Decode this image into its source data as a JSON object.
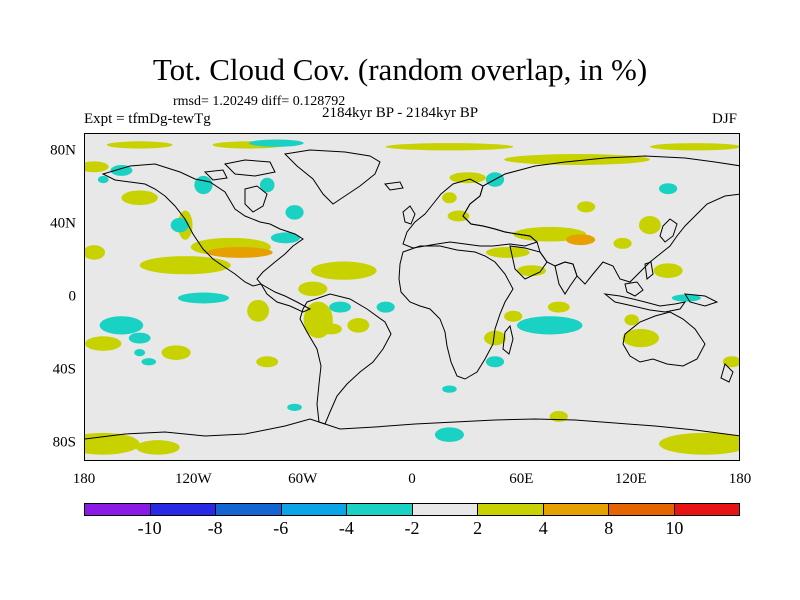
{
  "title": "Tot. Cloud Cov. (random overlap, in %)",
  "stats": "rmsd= 1.20249 diff= 0.128792",
  "experiment": "Expt = tfmDg-tewTg",
  "period": "2184kyr BP - 2184kyr BP",
  "season": "DJF",
  "map": {
    "projection": "cylindrical equidistant",
    "lon_range": [
      -180,
      180
    ],
    "lat_range": [
      -90,
      90
    ],
    "background_color": "#e8e8e8",
    "x_ticks": [
      "180",
      "120W",
      "60W",
      "0",
      "60E",
      "120E",
      "180"
    ],
    "y_ticks": [
      "80N",
      "40N",
      "0",
      "40S",
      "80S"
    ],
    "anomaly_regions": [
      {
        "lon": -175,
        "lat": 72,
        "rx": 8,
        "ry": 3,
        "value": 3
      },
      {
        "lon": -150,
        "lat": 84,
        "rx": 18,
        "ry": 2,
        "value": 3
      },
      {
        "lon": -90,
        "lat": 84,
        "rx": 20,
        "ry": 2,
        "value": 3
      },
      {
        "lon": 20,
        "lat": 83,
        "rx": 35,
        "ry": 2,
        "value": 3
      },
      {
        "lon": 155,
        "lat": 83,
        "rx": 25,
        "ry": 2,
        "value": 3
      },
      {
        "lon": 90,
        "lat": 76,
        "rx": 40,
        "ry": 3,
        "value": 3
      },
      {
        "lon": 30,
        "lat": 66,
        "rx": 10,
        "ry": 3,
        "value": 3
      },
      {
        "lon": -150,
        "lat": 55,
        "rx": 10,
        "ry": 4,
        "value": 3
      },
      {
        "lon": -125,
        "lat": 40,
        "rx": 4,
        "ry": 8,
        "value": 3
      },
      {
        "lon": 95,
        "lat": 50,
        "rx": 5,
        "ry": 3,
        "value": 3
      },
      {
        "lon": -175,
        "lat": 25,
        "rx": 6,
        "ry": 4,
        "value": 3
      },
      {
        "lon": -125,
        "lat": 18,
        "rx": 25,
        "ry": 5,
        "value": 3
      },
      {
        "lon": -100,
        "lat": 28,
        "rx": 22,
        "ry": 5,
        "value": 3
      },
      {
        "lon": -95,
        "lat": 25,
        "rx": 18,
        "ry": 3,
        "value": 6
      },
      {
        "lon": -38,
        "lat": 15,
        "rx": 18,
        "ry": 5,
        "value": 3
      },
      {
        "lon": -55,
        "lat": 5,
        "rx": 8,
        "ry": 4,
        "value": 3
      },
      {
        "lon": -85,
        "lat": -7,
        "rx": 6,
        "ry": 6,
        "value": 3
      },
      {
        "lon": -52,
        "lat": -12,
        "rx": 8,
        "ry": 10,
        "value": 3
      },
      {
        "lon": -45,
        "lat": -17,
        "rx": 6,
        "ry": 3,
        "value": 3
      },
      {
        "lon": -30,
        "lat": -15,
        "rx": 6,
        "ry": 4,
        "value": 3
      },
      {
        "lon": -170,
        "lat": -25,
        "rx": 10,
        "ry": 4,
        "value": 3
      },
      {
        "lon": -130,
        "lat": -30,
        "rx": 8,
        "ry": 4,
        "value": 3
      },
      {
        "lon": -80,
        "lat": -35,
        "rx": 6,
        "ry": 3,
        "value": 3
      },
      {
        "lon": 75,
        "lat": 35,
        "rx": 20,
        "ry": 4,
        "value": 3
      },
      {
        "lon": 92,
        "lat": 32,
        "rx": 8,
        "ry": 3,
        "value": 6
      },
      {
        "lon": 52,
        "lat": 25,
        "rx": 12,
        "ry": 3,
        "value": 3
      },
      {
        "lon": 65,
        "lat": 15,
        "rx": 8,
        "ry": 3,
        "value": 3
      },
      {
        "lon": 25,
        "lat": 45,
        "rx": 6,
        "ry": 3,
        "value": 3
      },
      {
        "lon": 20,
        "lat": 55,
        "rx": 4,
        "ry": 3,
        "value": 3
      },
      {
        "lon": 130,
        "lat": 40,
        "rx": 6,
        "ry": 5,
        "value": 3
      },
      {
        "lon": 115,
        "lat": 30,
        "rx": 5,
        "ry": 3,
        "value": 3
      },
      {
        "lon": 140,
        "lat": 15,
        "rx": 8,
        "ry": 4,
        "value": 3
      },
      {
        "lon": 45,
        "lat": -22,
        "rx": 6,
        "ry": 4,
        "value": 3
      },
      {
        "lon": 55,
        "lat": -10,
        "rx": 5,
        "ry": 3,
        "value": 3
      },
      {
        "lon": 80,
        "lat": -5,
        "rx": 6,
        "ry": 3,
        "value": 3
      },
      {
        "lon": 125,
        "lat": -22,
        "rx": 10,
        "ry": 5,
        "value": 3
      },
      {
        "lon": 120,
        "lat": -12,
        "rx": 4,
        "ry": 3,
        "value": 3
      },
      {
        "lon": 175,
        "lat": -35,
        "rx": 5,
        "ry": 3,
        "value": 3
      },
      {
        "lon": -170,
        "lat": -80,
        "rx": 20,
        "ry": 6,
        "value": 3
      },
      {
        "lon": -140,
        "lat": -82,
        "rx": 12,
        "ry": 4,
        "value": 3
      },
      {
        "lon": 160,
        "lat": -80,
        "rx": 25,
        "ry": 6,
        "value": 3
      },
      {
        "lon": 80,
        "lat": -65,
        "rx": 5,
        "ry": 3,
        "value": 3
      },
      {
        "lon": -75,
        "lat": 85,
        "rx": 15,
        "ry": 2,
        "value": -3
      },
      {
        "lon": -160,
        "lat": 70,
        "rx": 6,
        "ry": 3,
        "value": -3
      },
      {
        "lon": -170,
        "lat": 65,
        "rx": 3,
        "ry": 2,
        "value": -3
      },
      {
        "lon": -115,
        "lat": 62,
        "rx": 5,
        "ry": 5,
        "value": -3
      },
      {
        "lon": -80,
        "lat": 62,
        "rx": 4,
        "ry": 4,
        "value": -3
      },
      {
        "lon": -65,
        "lat": 47,
        "rx": 5,
        "ry": 4,
        "value": -3
      },
      {
        "lon": 45,
        "lat": 65,
        "rx": 5,
        "ry": 4,
        "value": -3
      },
      {
        "lon": -128,
        "lat": 40,
        "rx": 5,
        "ry": 4,
        "value": -3
      },
      {
        "lon": -70,
        "lat": 33,
        "rx": 8,
        "ry": 3,
        "value": -3
      },
      {
        "lon": 140,
        "lat": 60,
        "rx": 5,
        "ry": 3,
        "value": -3
      },
      {
        "lon": -115,
        "lat": 0,
        "rx": 14,
        "ry": 3,
        "value": -3
      },
      {
        "lon": -40,
        "lat": -5,
        "rx": 6,
        "ry": 3,
        "value": -3
      },
      {
        "lon": -15,
        "lat": -5,
        "rx": 5,
        "ry": 3,
        "value": -3
      },
      {
        "lon": -160,
        "lat": -15,
        "rx": 12,
        "ry": 5,
        "value": -3
      },
      {
        "lon": -150,
        "lat": -22,
        "rx": 6,
        "ry": 3,
        "value": -3
      },
      {
        "lon": -145,
        "lat": -35,
        "rx": 4,
        "ry": 2,
        "value": -3
      },
      {
        "lon": 75,
        "lat": -15,
        "rx": 18,
        "ry": 5,
        "value": -3
      },
      {
        "lon": 45,
        "lat": -35,
        "rx": 5,
        "ry": 3,
        "value": -3
      },
      {
        "lon": 150,
        "lat": 0,
        "rx": 8,
        "ry": 2,
        "value": -3
      },
      {
        "lon": -150,
        "lat": -30,
        "rx": 3,
        "ry": 2,
        "value": -3
      },
      {
        "lon": 20,
        "lat": -50,
        "rx": 4,
        "ry": 2,
        "value": -3
      },
      {
        "lon": 20,
        "lat": -75,
        "rx": 8,
        "ry": 4,
        "value": -3
      },
      {
        "lon": -65,
        "lat": -60,
        "rx": 4,
        "ry": 2,
        "value": -3
      }
    ]
  },
  "colorbar": {
    "colors": [
      "#8b1ae6",
      "#2828e6",
      "#1464d2",
      "#0aa5e6",
      "#1ad2c3",
      "#e8e8e8",
      "#c8d200",
      "#e6a000",
      "#e66400",
      "#e61414"
    ],
    "labels": [
      "-10",
      "-8",
      "-6",
      "-4",
      "-2",
      "2",
      "4",
      "8",
      "10"
    ]
  }
}
